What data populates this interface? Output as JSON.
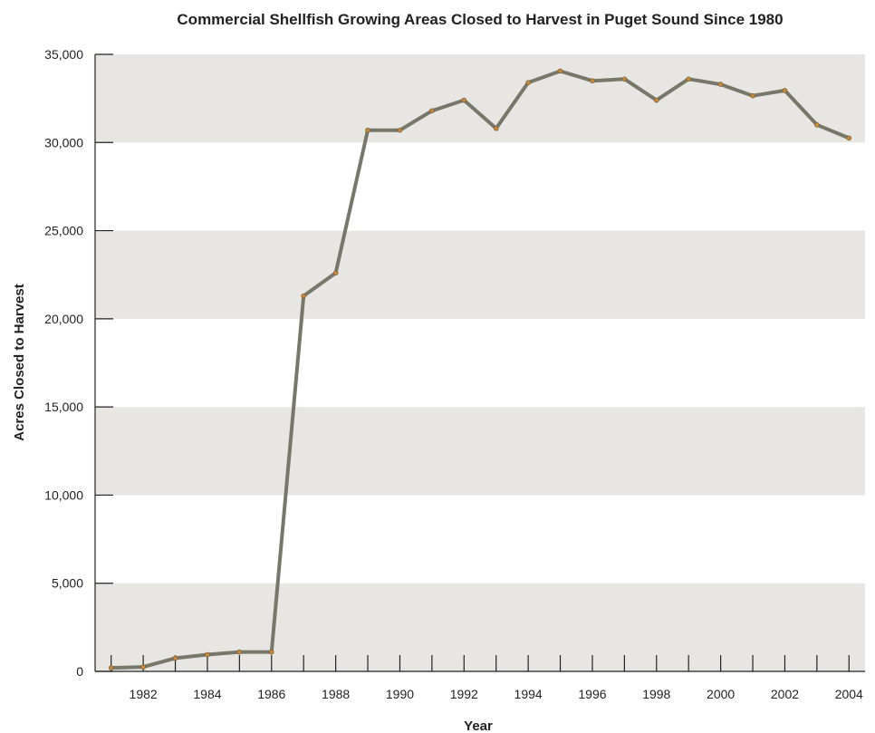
{
  "chart_data": {
    "type": "line",
    "title": "Commercial Shellfish Growing Areas Closed to Harvest in Puget Sound Since 1980",
    "xlabel": "Year",
    "ylabel": "Acres Closed to Harvest",
    "xlim": [
      1980.5,
      2004.5
    ],
    "ylim": [
      0,
      35000
    ],
    "x_ticks": [
      1982,
      1984,
      1986,
      1988,
      1990,
      1992,
      1994,
      1996,
      1998,
      2000,
      2002,
      2004
    ],
    "y_ticks": [
      0,
      5000,
      10000,
      15000,
      20000,
      25000,
      30000,
      35000
    ],
    "y_tick_labels": [
      "0",
      "5,000",
      "10,000",
      "15,000",
      "20,000",
      "25,000",
      "30,000",
      "35,000"
    ],
    "background_bands": "alternating grey bands every 5,000 acres",
    "grid": false,
    "legend": "none",
    "series": [
      {
        "x": [
          1981,
          1982,
          1983,
          1984,
          1985,
          1986,
          1987,
          1988,
          1989,
          1990,
          1991,
          1992,
          1993,
          1994,
          1995,
          1996,
          1997,
          1998,
          1999,
          2000,
          2001,
          2002,
          2003,
          2004
        ],
        "values": [
          200,
          250,
          750,
          950,
          1100,
          1100,
          21300,
          22600,
          30700,
          30700,
          31800,
          32400,
          30800,
          33400,
          34050,
          33500,
          33600,
          32400,
          33600,
          33300,
          32650,
          32950,
          31000,
          30250
        ],
        "color": "#77776a",
        "marker_color": "#c8893a"
      }
    ]
  },
  "colors": {
    "band": "#e8e6e2",
    "axis": "#222222"
  }
}
